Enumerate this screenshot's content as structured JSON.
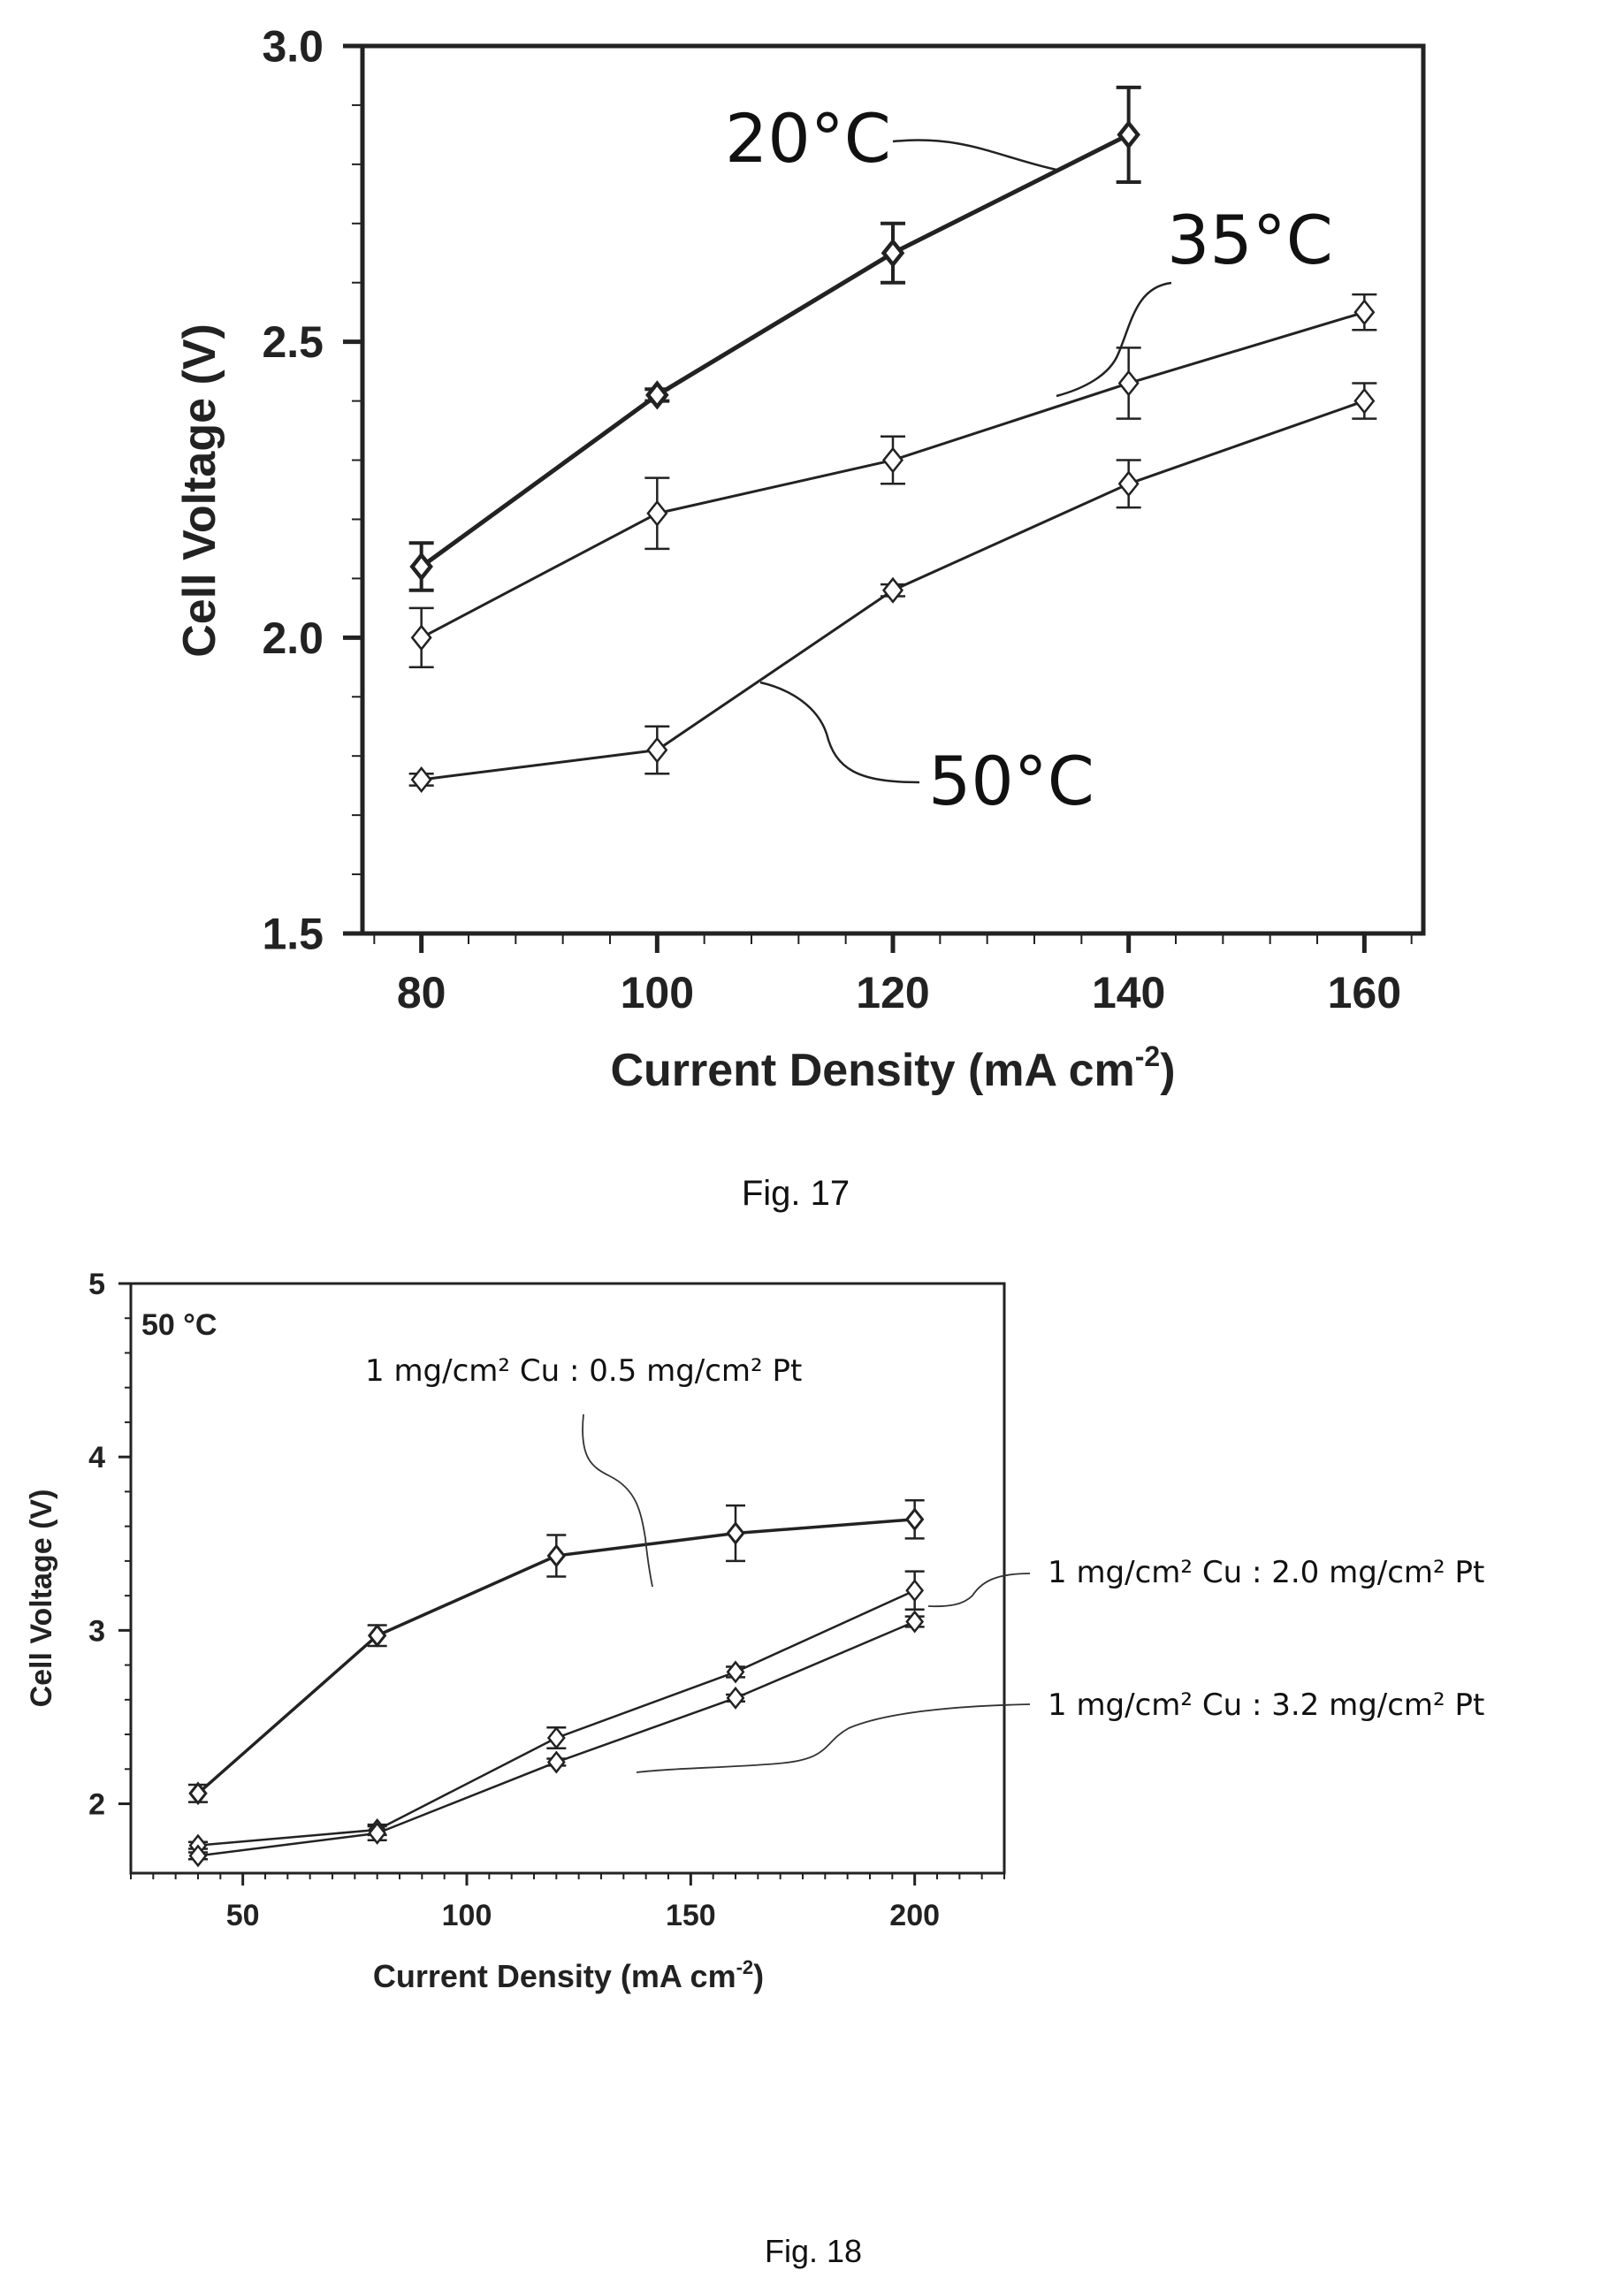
{
  "figures": [
    {
      "caption": "Fig. 17",
      "chart_data": {
        "type": "line",
        "xlabel": "Current Density (mA cm",
        "xlabel_sup": "-2",
        "xlabel_end": ")",
        "ylabel": "Cell Voltage (V)",
        "xlim": [
          75,
          165
        ],
        "ylim": [
          1.5,
          3.0
        ],
        "xticks": [
          80,
          100,
          120,
          140,
          160
        ],
        "yticks": [
          1.5,
          2.0,
          2.5,
          3.0
        ],
        "ytick_labels": [
          "1.5",
          "2.0",
          "2.5",
          "3.0"
        ],
        "series": [
          {
            "name": "20°C",
            "x": [
              80,
              100,
              120,
              140
            ],
            "y": [
              2.12,
              2.41,
              2.65,
              2.85
            ],
            "err": [
              0.04,
              0.01,
              0.05,
              0.08
            ],
            "marker": "diamond",
            "stroke": 5
          },
          {
            "name": "35°C",
            "x": [
              80,
              100,
              120,
              140,
              160
            ],
            "y": [
              2.0,
              2.21,
              2.3,
              2.43,
              2.55
            ],
            "err": [
              0.05,
              0.06,
              0.04,
              0.06,
              0.03
            ],
            "marker": "diamond",
            "stroke": 3
          },
          {
            "name": "50°C",
            "x": [
              80,
              100,
              120,
              140,
              160
            ],
            "y": [
              1.76,
              1.81,
              2.08,
              2.26,
              2.4
            ],
            "err": [
              0.01,
              0.04,
              0.01,
              0.04,
              0.03
            ],
            "marker": "diamond",
            "stroke": 3
          }
        ]
      }
    },
    {
      "caption": "Fig. 18",
      "chart_data": {
        "type": "line",
        "panel_label": "50 °C",
        "xlabel": "Current Density (mA cm",
        "xlabel_sup": "-2",
        "xlabel_end": ")",
        "ylabel": "Cell Voltage (V)",
        "xlim": [
          25,
          220
        ],
        "ylim": [
          1.6,
          5.0
        ],
        "xticks": [
          50,
          100,
          150,
          200
        ],
        "yticks": [
          2,
          3,
          4,
          5
        ],
        "series": [
          {
            "name": "1 mg/cm² Cu : 0.5 mg/cm² Pt",
            "x": [
              40,
              80,
              120,
              160,
              200
            ],
            "y": [
              2.06,
              2.97,
              3.43,
              3.56,
              3.64
            ],
            "err": [
              0.05,
              0.06,
              0.12,
              0.16,
              0.11
            ],
            "marker": "diamond",
            "stroke": 3.5
          },
          {
            "name": "1 mg/cm² Cu : 2.0 mg/cm² Pt",
            "x": [
              40,
              80,
              120,
              160,
              200
            ],
            "y": [
              1.76,
              1.85,
              2.38,
              2.76,
              3.23
            ],
            "err": [
              0.02,
              0.03,
              0.06,
              0.03,
              0.11
            ],
            "marker": "diamond",
            "stroke": 2.5
          },
          {
            "name": "1 mg/cm² Cu : 3.2 mg/cm² Pt",
            "x": [
              40,
              80,
              120,
              160,
              200
            ],
            "y": [
              1.7,
              1.83,
              2.24,
              2.61,
              3.05
            ],
            "err": [
              0.02,
              0.04,
              0.02,
              0.02,
              0.03
            ],
            "marker": "diamond",
            "stroke": 2.5
          }
        ]
      }
    }
  ]
}
